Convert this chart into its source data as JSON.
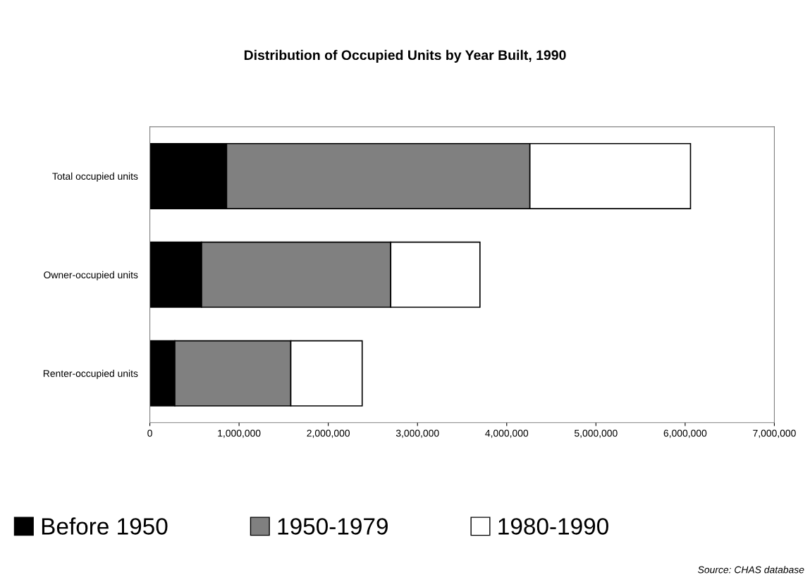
{
  "chart_data": {
    "type": "bar",
    "orientation": "horizontal",
    "stacked": true,
    "title": "Distribution of Occupied Units by Year Built, 1990",
    "categories": [
      "Total occupied units",
      "Owner-occupied units",
      "Renter-occupied units"
    ],
    "series": [
      {
        "name": "Before 1950",
        "color": "#000000",
        "values": [
          860000,
          580000,
          280000
        ]
      },
      {
        "name": "1950-1979",
        "color": "#808080",
        "values": [
          3400000,
          2120000,
          1300000
        ]
      },
      {
        "name": "1980-1990",
        "color": "#ffffff",
        "values": [
          1800000,
          1000000,
          800000
        ]
      }
    ],
    "xlim": [
      0,
      7000000
    ],
    "xticks": [
      0,
      {
        "value": 1000000,
        "label": "1,000,000"
      },
      {
        "value": 2000000,
        "label": "2,000,000"
      },
      {
        "value": 3000000,
        "label": "3,000,000"
      },
      {
        "value": 4000000,
        "label": "4,000,000"
      },
      {
        "value": 5000000,
        "label": "5,000,000"
      },
      {
        "value": 6000000,
        "label": "6,000,000"
      },
      {
        "value": 7000000,
        "label": "7,000,000"
      }
    ],
    "grid": false,
    "legend": "bottom",
    "annotations": [
      "Source: CHAS database"
    ]
  }
}
